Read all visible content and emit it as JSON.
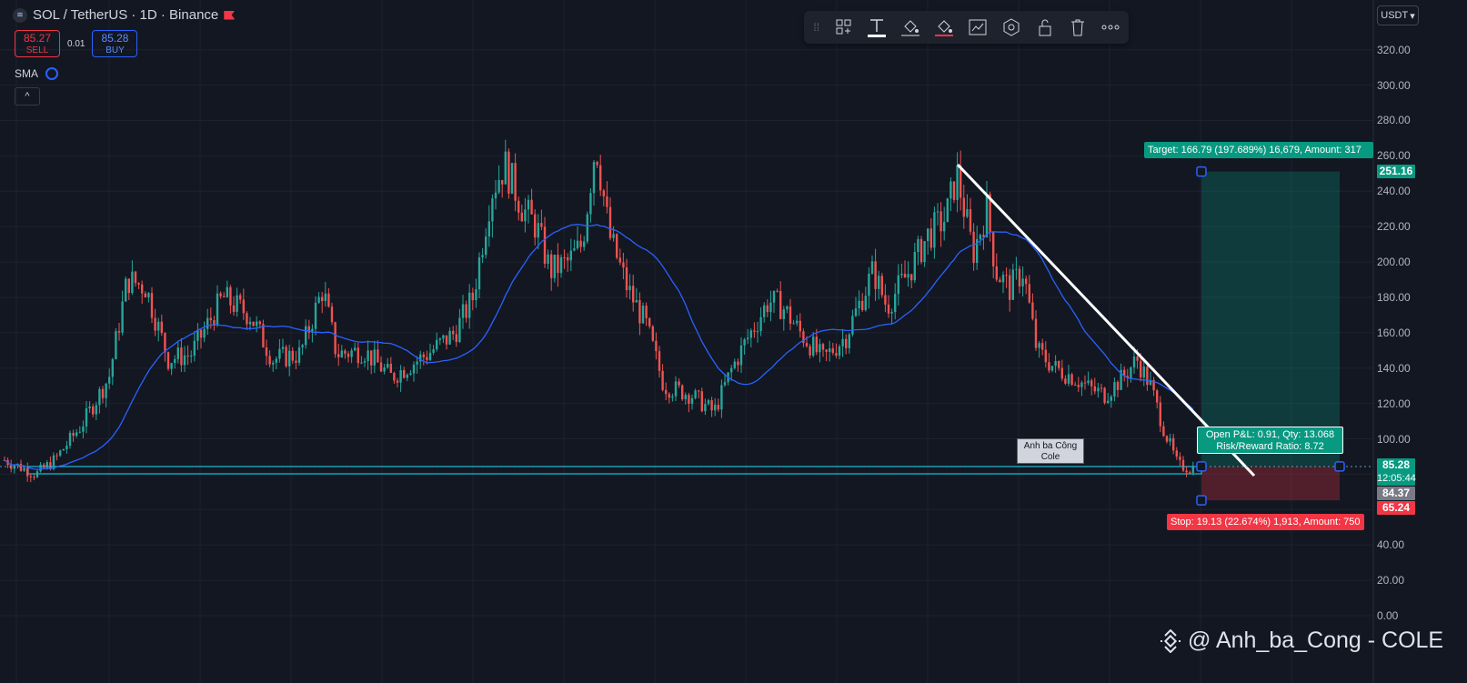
{
  "header": {
    "symbol": "SOL / TetherUS · 1D · Binance",
    "symbol_icon": "≋",
    "flag_color": "#f23645"
  },
  "trade": {
    "sell_price": "85.27",
    "sell_label": "SELL",
    "spread": "0.01",
    "buy_price": "85.28",
    "buy_label": "BUY"
  },
  "indicator": {
    "name": "SMA"
  },
  "collapse_label": "^",
  "toolbar": {
    "icons": [
      "grip-icon",
      "add-template-icon",
      "text-icon",
      "fill-color-icon",
      "line-color-icon",
      "settings-chart-icon",
      "object-settings-icon",
      "lock-icon",
      "delete-icon",
      "more-icon"
    ]
  },
  "currency": {
    "label": "USDT",
    "arrow": "▾"
  },
  "price_axis": {
    "labels": [
      "320.00",
      "300.00",
      "280.00",
      "260.00",
      "240.00",
      "220.00",
      "200.00",
      "180.00",
      "160.00",
      "140.00",
      "120.00",
      "100.00",
      "40.00",
      "20.00",
      "0.00"
    ],
    "values": [
      320,
      300,
      280,
      260,
      240,
      220,
      200,
      180,
      160,
      140,
      120,
      100,
      40,
      20,
      0
    ]
  },
  "price_tags": {
    "target": {
      "value": "251.16",
      "color": "#089981"
    },
    "current": {
      "value": "85.28",
      "countdown": "12:05:44",
      "color": "#089981"
    },
    "entry": {
      "value": "84.37",
      "color": "#787b86"
    },
    "stop": {
      "value": "65.24",
      "color": "#f23645"
    }
  },
  "position": {
    "target_text": "Target: 166.79 (197.689%) 16,679, Amount: 317",
    "stop_text": "Stop: 19.13 (22.674%) 1,913, Amount: 750",
    "pnl_line1": "Open P&L: 0.91, Qty: 13.068",
    "pnl_line2": "Risk/Reward Ratio: 8.72",
    "entry_price": 84.37,
    "target_price": 251.16,
    "stop_price": 65.24,
    "profit_color": "#089981",
    "loss_color": "#f23645"
  },
  "annotation": {
    "line1": "Anh ba Công",
    "line2": "Cole"
  },
  "watermark": {
    "text": "@ Anh_ba_Cong - COLE"
  },
  "colors": {
    "background": "#131722",
    "up_candle": "#26a69a",
    "down_candle": "#ef5350",
    "sma": "#2962ff",
    "trendline": "#ffffff",
    "support_box": "#00bcd4"
  }
}
